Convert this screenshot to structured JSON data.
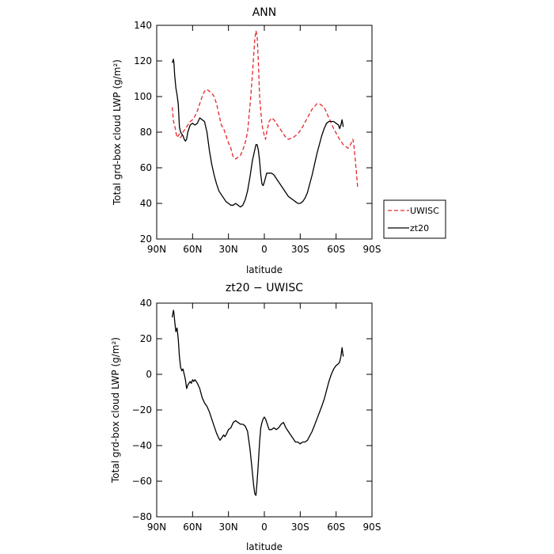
{
  "colors": {
    "uwisc": "#e8262a",
    "zt20": "#000000",
    "axis": "#000000"
  },
  "chart_data": [
    {
      "type": "line",
      "title": "ANN",
      "xlabel": "latitude",
      "ylabel": "Total grd-box cloud LWP (g/m²)",
      "xlim": [
        90,
        -90
      ],
      "ylim": [
        20,
        140
      ],
      "xticks": [
        90,
        60,
        30,
        0,
        -30,
        -60,
        -90
      ],
      "xtick_labels": [
        "90N",
        "60N",
        "30N",
        "0",
        "30S",
        "60S",
        "90S"
      ],
      "yticks": [
        20,
        40,
        60,
        80,
        100,
        120,
        140
      ],
      "ytick_labels": [
        "20",
        "40",
        "60",
        "80",
        "100",
        "120",
        "140"
      ],
      "legend": {
        "placement": "outside-right",
        "entries": [
          "UWISC",
          "zt20"
        ]
      },
      "series": [
        {
          "name": "UWISC",
          "style": "dashed",
          "color": "#e8262a",
          "x": [
            77,
            76,
            75,
            74,
            73,
            72,
            71,
            70,
            69,
            68,
            66,
            64,
            62,
            60,
            58,
            56,
            54,
            52,
            50,
            48,
            46,
            44,
            42,
            40,
            38,
            36,
            34,
            32,
            30,
            28,
            26,
            24,
            22,
            20,
            18,
            16,
            14,
            12,
            10,
            9,
            8,
            7,
            6,
            5,
            4,
            2,
            0,
            -1,
            -2,
            -4,
            -6,
            -8,
            -10,
            -12,
            -14,
            -16,
            -18,
            -20,
            -24,
            -28,
            -32,
            -36,
            -40,
            -44,
            -46,
            -48,
            -50,
            -54,
            -58,
            -62,
            -66,
            -68,
            -70,
            -72,
            -74,
            -75,
            -76,
            -77,
            -78
          ],
          "y": [
            94,
            86,
            84,
            80,
            77,
            78,
            79,
            77,
            78,
            80,
            82,
            84,
            86,
            87,
            89,
            92,
            96,
            100,
            103,
            104,
            103,
            102,
            100,
            96,
            90,
            84,
            82,
            78,
            74,
            71,
            66,
            65,
            66,
            67,
            70,
            74,
            80,
            95,
            112,
            122,
            132,
            137,
            134,
            120,
            100,
            84,
            78,
            76,
            80,
            86,
            88,
            87,
            85,
            83,
            81,
            79,
            77,
            76,
            77,
            79,
            83,
            88,
            93,
            96,
            96,
            95,
            94,
            88,
            82,
            77,
            73,
            72,
            71,
            73,
            76,
            72,
            65,
            57,
            49
          ]
        },
        {
          "name": "zt20",
          "style": "solid",
          "color": "#000000",
          "x": [
            77,
            76,
            75.5,
            75,
            74,
            73,
            72,
            71,
            70,
            69,
            68,
            67,
            66,
            65,
            64,
            62,
            60,
            58,
            56,
            54,
            52,
            50,
            48,
            46,
            44,
            42,
            40,
            38,
            36,
            34,
            32,
            30,
            28,
            26,
            24,
            22,
            20,
            18,
            16,
            14,
            12,
            10,
            8,
            7,
            6,
            5,
            4,
            3,
            2,
            1,
            0,
            -2,
            -4,
            -6,
            -8,
            -10,
            -12,
            -14,
            -16,
            -18,
            -20,
            -22,
            -24,
            -26,
            -28,
            -30,
            -32,
            -34,
            -36,
            -40,
            -44,
            -48,
            -50,
            -52,
            -54,
            -56,
            -58,
            -60,
            -62,
            -63,
            -64,
            -65,
            -66
          ],
          "y": [
            119,
            121,
            118,
            112,
            105,
            101,
            96,
            83,
            80,
            79,
            78,
            76,
            75,
            76,
            80,
            84,
            85,
            84,
            85,
            88,
            87,
            86,
            80,
            70,
            62,
            56,
            51,
            47,
            45,
            43,
            41,
            40,
            39,
            39,
            40,
            39,
            38,
            39,
            42,
            47,
            55,
            64,
            70,
            73,
            73,
            70,
            64,
            56,
            51,
            50,
            52,
            57,
            57,
            57,
            56,
            54,
            52,
            50,
            48,
            46,
            44,
            43,
            42,
            41,
            40,
            40,
            41,
            43,
            46,
            56,
            68,
            78,
            82,
            85,
            86,
            86,
            86,
            85,
            84,
            82,
            84,
            87,
            83
          ]
        }
      ]
    },
    {
      "type": "line",
      "title": "zt20 − UWISC",
      "xlabel": "latitude",
      "ylabel": "Total grd-box cloud LWP (g/m²)",
      "xlim": [
        90,
        -90
      ],
      "ylim": [
        -80,
        40
      ],
      "xticks": [
        90,
        60,
        30,
        0,
        -30,
        -60,
        -90
      ],
      "xtick_labels": [
        "90N",
        "60N",
        "30N",
        "0",
        "30S",
        "60S",
        "90S"
      ],
      "yticks": [
        -80,
        -60,
        -40,
        -20,
        0,
        20,
        40
      ],
      "ytick_labels": [
        "−80",
        "−60",
        "−40",
        "−20",
        "0",
        "20",
        "40"
      ],
      "series": [
        {
          "style": "solid",
          "color": "#000000",
          "x": [
            77,
            76,
            75.5,
            75,
            74,
            73,
            72,
            71,
            70,
            69,
            68,
            67,
            66,
            65,
            64,
            63,
            62,
            61,
            60,
            59,
            58,
            57,
            56,
            54,
            52,
            50,
            48,
            46,
            44,
            42,
            40,
            38,
            37,
            36,
            35,
            34,
            33,
            32,
            30,
            28,
            26,
            24,
            22,
            20,
            18,
            16,
            14,
            12,
            10,
            9,
            8,
            7,
            6,
            5,
            4,
            3,
            2,
            1,
            0,
            -1,
            -2,
            -3,
            -4,
            -6,
            -8,
            -10,
            -12,
            -14,
            -16,
            -18,
            -20,
            -22,
            -24,
            -26,
            -28,
            -30,
            -32,
            -34,
            -36,
            -40,
            -44,
            -48,
            -50,
            -52,
            -54,
            -56,
            -58,
            -60,
            -62,
            -63,
            -64,
            -65,
            -66
          ],
          "y": [
            32,
            36,
            34,
            30,
            24,
            26,
            20,
            10,
            4,
            2,
            3,
            0,
            -3,
            -8,
            -6,
            -5,
            -4,
            -5,
            -3,
            -4,
            -3,
            -4,
            -5,
            -8,
            -13,
            -16,
            -18,
            -21,
            -25,
            -29,
            -33,
            -36,
            -37,
            -36,
            -35,
            -34,
            -35,
            -34,
            -31,
            -30,
            -27,
            -26,
            -27,
            -28,
            -28,
            -29,
            -32,
            -42,
            -55,
            -62,
            -67,
            -68,
            -60,
            -50,
            -38,
            -30,
            -27,
            -25,
            -24,
            -25,
            -27,
            -29,
            -31,
            -31,
            -30,
            -31,
            -30,
            -28,
            -27,
            -30,
            -32,
            -34,
            -36,
            -38,
            -38,
            -39,
            -38,
            -38,
            -37,
            -32,
            -25,
            -18,
            -14,
            -9,
            -4,
            0,
            3,
            5,
            6,
            7,
            10,
            15,
            10
          ]
        }
      ]
    }
  ]
}
